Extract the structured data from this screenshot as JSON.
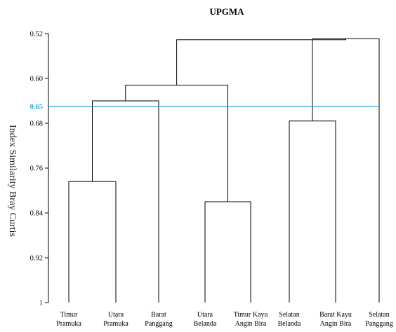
{
  "chart_data": {
    "type": "dendrogram",
    "title": "UPGMA",
    "ylabel": "Index Similarity Bray Curtis",
    "ylim": [
      0.52,
      1
    ],
    "y_ticks": [
      "0.52",
      "0.60",
      "0.68",
      "0.76",
      "0.84",
      "0.92",
      "1"
    ],
    "reference_line": {
      "value": 0.65,
      "label": "0.65",
      "color": "#2aa7d6"
    },
    "leaves": [
      [
        "Timur",
        "Pramuka"
      ],
      [
        "Utara",
        "Pramuka"
      ],
      [
        "Barat",
        "Panggang"
      ],
      [
        "Utara",
        "Belanda"
      ],
      [
        "Timur Kayu",
        "Angin Bira"
      ],
      [
        "Selatan",
        "Belanda"
      ],
      [
        "Barat Kayu",
        "Angin Bira"
      ],
      [
        "Selatan",
        "Panggang"
      ]
    ],
    "merges": [
      {
        "id": "n1",
        "children": [
          "L0",
          "L1"
        ],
        "height": 0.784
      },
      {
        "id": "n2",
        "children": [
          "n1",
          "L2"
        ],
        "height": 0.64
      },
      {
        "id": "n3",
        "children": [
          "L3",
          "L4"
        ],
        "height": 0.82
      },
      {
        "id": "n4",
        "children": [
          "n2",
          "n3"
        ],
        "height": 0.612
      },
      {
        "id": "n5",
        "children": [
          "L5",
          "L6"
        ],
        "height": 0.676
      },
      {
        "id": "n6",
        "children": [
          "n5",
          "L7"
        ],
        "height": 0.529
      },
      {
        "id": "n7",
        "children": [
          "n4",
          "n6"
        ],
        "height": 0.531
      }
    ]
  }
}
